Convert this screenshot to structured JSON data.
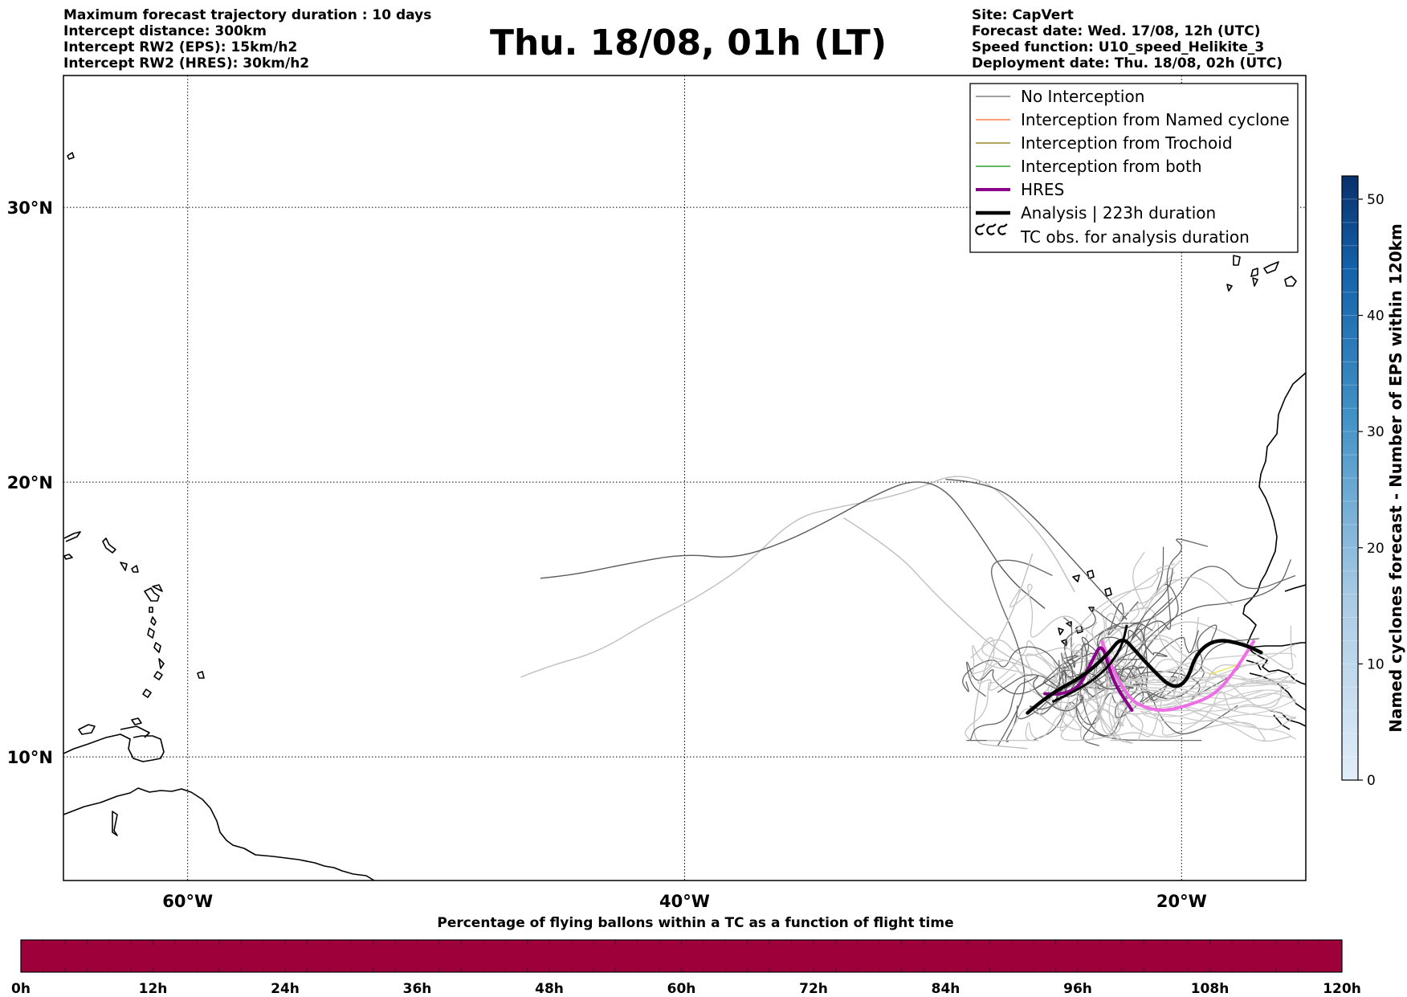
{
  "header": {
    "left": [
      "Maximum forecast trajectory duration : 10 days",
      "Intercept distance: 300km",
      "Intercept RW2 (EPS):  15km/h2",
      "Intercept RW2 (HRES): 30km/h2"
    ],
    "title": "Thu. 18/08, 01h (LT)",
    "right": [
      "Site: CapVert",
      "Forecast date: Wed. 17/08, 12h (UTC)",
      "Speed function: U10_speed_Helikite_3",
      "Deployment date: Thu. 18/08, 02h (UTC)"
    ]
  },
  "map": {
    "lon_range": [
      -65,
      -15
    ],
    "lat_range": [
      5.5,
      34.8
    ],
    "lon_ticks": [
      {
        "lon": -60,
        "label": "60°W"
      },
      {
        "lon": -40,
        "label": "40°W"
      },
      {
        "lon": -20,
        "label": "20°W"
      }
    ],
    "lat_ticks": [
      {
        "lat": 10,
        "label": "10°N"
      },
      {
        "lat": 20,
        "label": "20°N"
      },
      {
        "lat": 30,
        "label": "30°N"
      }
    ],
    "grid": "dotted"
  },
  "legend": {
    "placement": "top-right",
    "items": [
      {
        "label": "No Interception",
        "color": "#808080",
        "style": "thin"
      },
      {
        "label": "Interception from Named cyclone",
        "color": "#ff7f50",
        "style": "thin"
      },
      {
        "label": "Interception from Trochoid",
        "color": "#9a8a2a",
        "style": "thin"
      },
      {
        "label": "Interception from both",
        "color": "#2ca02c",
        "style": "thin"
      },
      {
        "label": "HRES",
        "color": "#8b008b",
        "style": "thick"
      },
      {
        "label": "Analysis | 223h duration",
        "color": "#000000",
        "style": "thick"
      },
      {
        "label": "TC obs. for analysis duration",
        "color": "#000000",
        "style": "symbol"
      }
    ]
  },
  "colorbar_right": {
    "label": "Named cyclones forecast - Number of EPS within 120km",
    "ticks": [
      0,
      10,
      20,
      30,
      40,
      50
    ],
    "range": [
      0,
      52
    ],
    "color_low": "#e3eef9",
    "color_high": "#08306b"
  },
  "bottom_bar": {
    "title": "Percentage of flying ballons within a TC as a function of flight time",
    "ticks": [
      "0h",
      "12h",
      "24h",
      "36h",
      "48h",
      "60h",
      "72h",
      "84h",
      "96h",
      "108h",
      "120h"
    ],
    "color": "#9e003a"
  },
  "tracks": {
    "analysis": [
      [
        -26.2,
        11.6
      ],
      [
        -25.3,
        12.3
      ],
      [
        -24,
        12.9
      ],
      [
        -23,
        13.7
      ],
      [
        -22.4,
        14.4
      ],
      [
        -21.8,
        13.8
      ],
      [
        -21.2,
        13.2
      ],
      [
        -20.4,
        12.5
      ],
      [
        -19.8,
        12.7
      ],
      [
        -19.4,
        13.8
      ],
      [
        -18.6,
        14.3
      ],
      [
        -17.5,
        14.1
      ],
      [
        -16.8,
        13.8
      ]
    ],
    "hres": [
      [
        -25.5,
        12.3
      ],
      [
        -24.3,
        12.2
      ],
      [
        -23.6,
        13.5
      ],
      [
        -23.2,
        14.2
      ],
      [
        -22.8,
        12.8
      ],
      [
        -22,
        11.7
      ],
      [
        -20.9,
        11.6
      ],
      [
        -19.7,
        11.9
      ],
      [
        -18.8,
        12.3
      ],
      [
        -18,
        13.2
      ],
      [
        -17.1,
        14.2
      ]
    ],
    "hres_light": [
      [
        -23.2,
        14.2
      ],
      [
        -22.4,
        12.2
      ],
      [
        -21,
        11.6
      ],
      [
        -19.6,
        11.9
      ],
      [
        -18.6,
        12.3
      ],
      [
        -17.8,
        13.2
      ],
      [
        -17.1,
        14.2
      ]
    ]
  }
}
